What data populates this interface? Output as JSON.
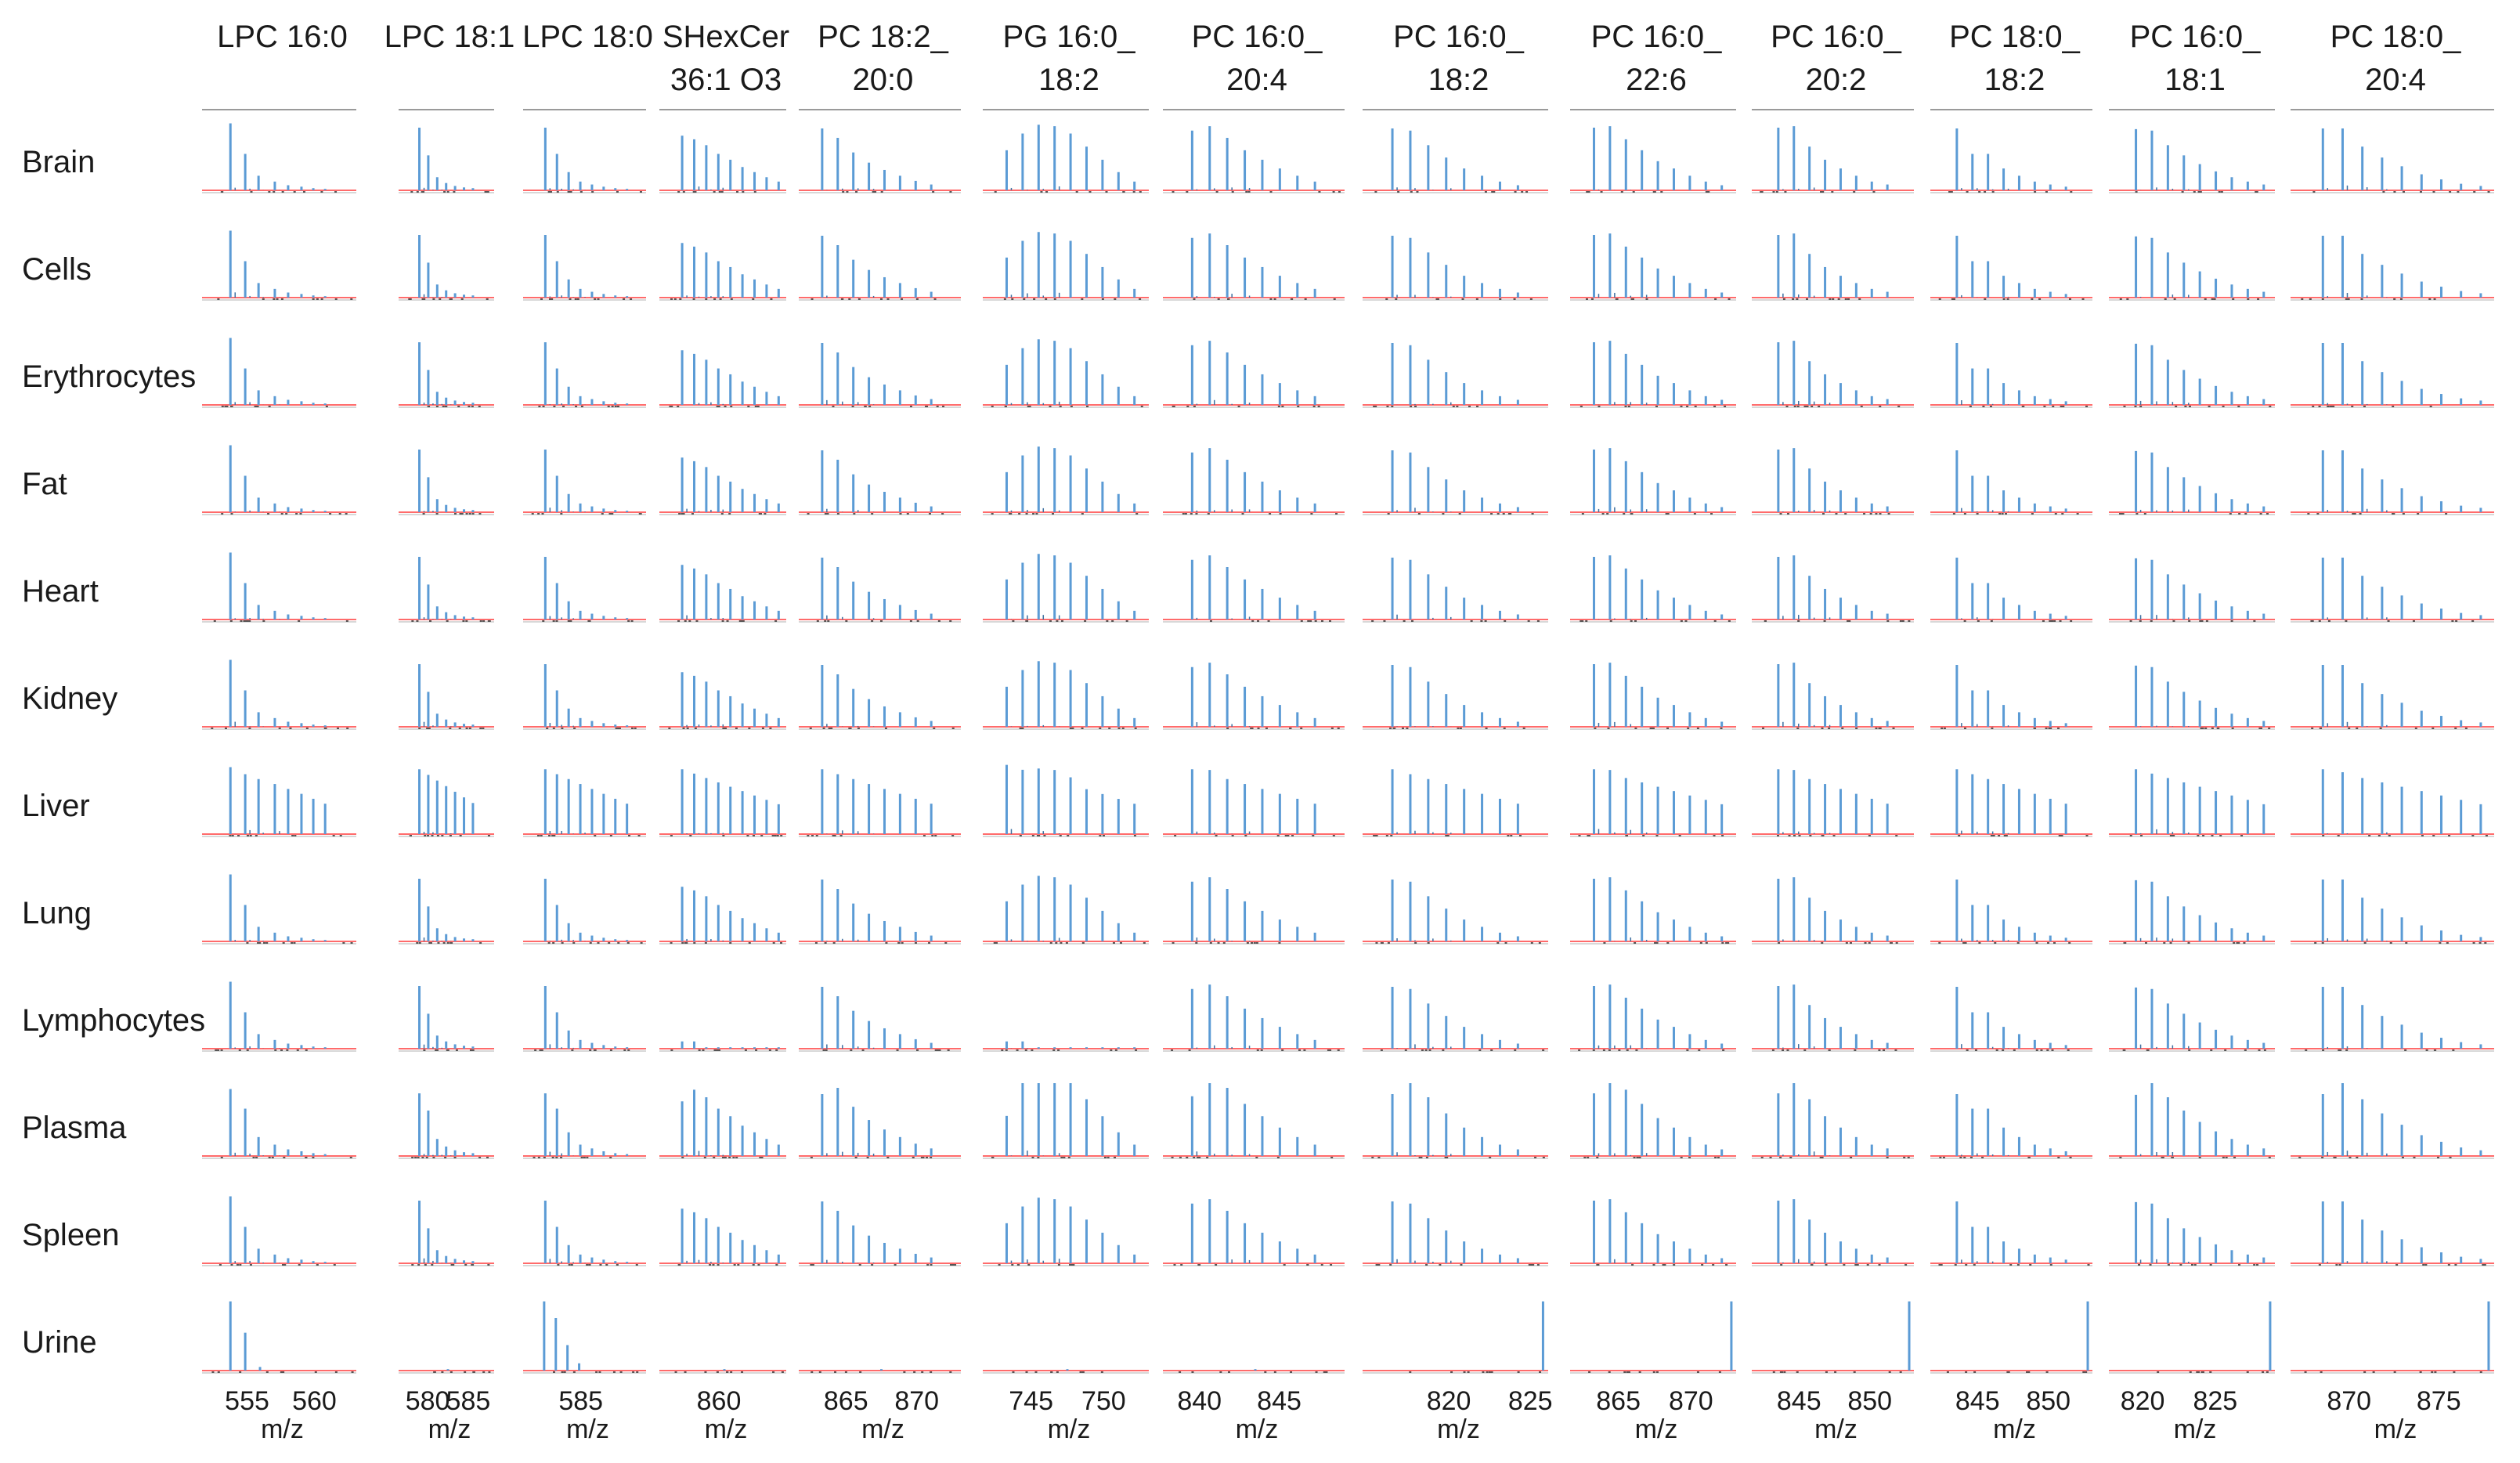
{
  "chart_data": {
    "type": "bar",
    "kind": "mass-spectrum-grid",
    "xlabel": "m/z",
    "baseline_color": "#ff6b6b",
    "bar_color": "#5b9bd5",
    "frame_color": "#9a9a9a",
    "columns": [
      {
        "title": [
          "LPC 16:0"
        ],
        "ticks": [
          555,
          560
        ],
        "xlim": [
          552,
          563
        ]
      },
      {
        "title": [
          "LPC 18:1"
        ],
        "ticks": [
          580,
          585
        ],
        "xlim": [
          577,
          588
        ]
      },
      {
        "title": [
          "LPC 18:0"
        ],
        "ticks": [
          585
        ],
        "xlim": [
          580,
          591
        ]
      },
      {
        "title": [
          "SHexCer",
          "36:1 O3"
        ],
        "ticks": [
          860
        ],
        "xlim": [
          855,
          866
        ]
      },
      {
        "title": [
          "PC 18:2_",
          "20:0"
        ],
        "ticks": [
          865,
          870
        ],
        "xlim": [
          862,
          873
        ]
      },
      {
        "title": [
          "PG 16:0_",
          "18:2"
        ],
        "ticks": [
          745,
          750
        ],
        "xlim": [
          742,
          753
        ]
      },
      {
        "title": [
          "PC 16:0_",
          "20:4"
        ],
        "ticks": [
          840,
          845
        ],
        "xlim": [
          838,
          849
        ]
      },
      {
        "title": [
          "PC 16:0_",
          "18:2"
        ],
        "ticks": [
          820,
          825
        ],
        "xlim": [
          815,
          826
        ]
      },
      {
        "title": [
          "PC 16:0_",
          "22:6"
        ],
        "ticks": [
          865,
          870
        ],
        "xlim": [
          862,
          873
        ]
      },
      {
        "title": [
          "PC 16:0_",
          "20:2"
        ],
        "ticks": [
          845,
          850
        ],
        "xlim": [
          842,
          853
        ]
      },
      {
        "title": [
          "PC 18:0_",
          "18:2"
        ],
        "ticks": [
          845,
          850
        ],
        "xlim": [
          842,
          853
        ]
      },
      {
        "title": [
          "PC 16:0_",
          "18:1"
        ],
        "ticks": [
          820,
          825
        ],
        "xlim": [
          818,
          829
        ]
      },
      {
        "title": [
          "PC 18:0_",
          "20:4"
        ],
        "ticks": [
          870,
          875
        ],
        "xlim": [
          867,
          878
        ]
      }
    ],
    "rows": [
      "Brain",
      "Cells",
      "Erythrocytes",
      "Fat",
      "Heart",
      "Kidney",
      "Liver",
      "Lung",
      "Lymphocytes",
      "Plasma",
      "Spleen",
      "Urine"
    ],
    "spectra": [
      [
        [
          0.16,
          0.92
        ],
        [
          0.26,
          0.5
        ],
        [
          0.35,
          0.2
        ],
        [
          0.46,
          0.12
        ],
        [
          0.55,
          0.07
        ],
        [
          0.64,
          0.05
        ],
        [
          0.72,
          0.03
        ],
        [
          0.8,
          0.02
        ]
      ],
      [
        [
          0.18,
          0.86
        ],
        [
          0.28,
          0.48
        ],
        [
          0.38,
          0.18
        ],
        [
          0.48,
          0.1
        ],
        [
          0.58,
          0.06
        ],
        [
          0.68,
          0.04
        ],
        [
          0.78,
          0.03
        ]
      ],
      [
        [
          0.15,
          0.86
        ],
        [
          0.25,
          0.5
        ],
        [
          0.35,
          0.25
        ],
        [
          0.45,
          0.12
        ],
        [
          0.55,
          0.08
        ],
        [
          0.65,
          0.05
        ],
        [
          0.75,
          0.03
        ],
        [
          0.85,
          0.02
        ]
      ],
      [
        [
          0.15,
          0.75
        ],
        [
          0.25,
          0.7
        ],
        [
          0.35,
          0.62
        ],
        [
          0.45,
          0.5
        ],
        [
          0.55,
          0.42
        ],
        [
          0.65,
          0.32
        ],
        [
          0.75,
          0.25
        ],
        [
          0.85,
          0.18
        ],
        [
          0.95,
          0.12
        ]
      ],
      [
        [
          0.12,
          0.85
        ],
        [
          0.22,
          0.72
        ],
        [
          0.32,
          0.52
        ],
        [
          0.42,
          0.38
        ],
        [
          0.52,
          0.28
        ],
        [
          0.62,
          0.2
        ],
        [
          0.72,
          0.13
        ],
        [
          0.82,
          0.08
        ]
      ],
      [
        [
          0.12,
          0.55
        ],
        [
          0.22,
          0.78
        ],
        [
          0.32,
          0.9
        ],
        [
          0.42,
          0.88
        ],
        [
          0.52,
          0.78
        ],
        [
          0.62,
          0.6
        ],
        [
          0.72,
          0.42
        ],
        [
          0.82,
          0.25
        ],
        [
          0.92,
          0.12
        ]
      ],
      [
        [
          0.14,
          0.82
        ],
        [
          0.24,
          0.88
        ],
        [
          0.34,
          0.72
        ],
        [
          0.44,
          0.55
        ],
        [
          0.54,
          0.42
        ],
        [
          0.64,
          0.3
        ],
        [
          0.74,
          0.2
        ],
        [
          0.84,
          0.12
        ]
      ],
      [
        [
          0.14,
          0.85
        ],
        [
          0.24,
          0.82
        ],
        [
          0.34,
          0.62
        ],
        [
          0.44,
          0.45
        ],
        [
          0.54,
          0.3
        ],
        [
          0.64,
          0.2
        ],
        [
          0.74,
          0.12
        ],
        [
          0.84,
          0.07
        ]
      ],
      [
        [
          0.12,
          0.86
        ],
        [
          0.22,
          0.88
        ],
        [
          0.32,
          0.7
        ],
        [
          0.42,
          0.55
        ],
        [
          0.52,
          0.4
        ],
        [
          0.62,
          0.3
        ],
        [
          0.72,
          0.2
        ],
        [
          0.82,
          0.12
        ],
        [
          0.92,
          0.07
        ]
      ],
      [
        [
          0.14,
          0.86
        ],
        [
          0.24,
          0.88
        ],
        [
          0.34,
          0.6
        ],
        [
          0.44,
          0.42
        ],
        [
          0.54,
          0.3
        ],
        [
          0.64,
          0.2
        ],
        [
          0.74,
          0.12
        ],
        [
          0.84,
          0.08
        ]
      ],
      [
        [
          0.14,
          0.85
        ],
        [
          0.24,
          0.5
        ],
        [
          0.34,
          0.5
        ],
        [
          0.44,
          0.3
        ],
        [
          0.54,
          0.2
        ],
        [
          0.64,
          0.12
        ],
        [
          0.74,
          0.08
        ],
        [
          0.84,
          0.05
        ]
      ],
      [
        [
          0.14,
          0.84
        ],
        [
          0.24,
          0.82
        ],
        [
          0.34,
          0.62
        ],
        [
          0.44,
          0.48
        ],
        [
          0.54,
          0.36
        ],
        [
          0.64,
          0.26
        ],
        [
          0.74,
          0.18
        ],
        [
          0.84,
          0.12
        ],
        [
          0.94,
          0.08
        ]
      ],
      [
        [
          0.14,
          0.85
        ],
        [
          0.24,
          0.85
        ],
        [
          0.34,
          0.6
        ],
        [
          0.44,
          0.45
        ],
        [
          0.54,
          0.33
        ],
        [
          0.64,
          0.22
        ],
        [
          0.74,
          0.15
        ],
        [
          0.84,
          0.09
        ],
        [
          0.94,
          0.06
        ]
      ]
    ],
    "row_variants": [
      "default",
      "default",
      "default",
      "default",
      "default",
      "default",
      "liver",
      "default",
      "lymphocytes",
      "plasma",
      "default",
      "urine"
    ]
  }
}
